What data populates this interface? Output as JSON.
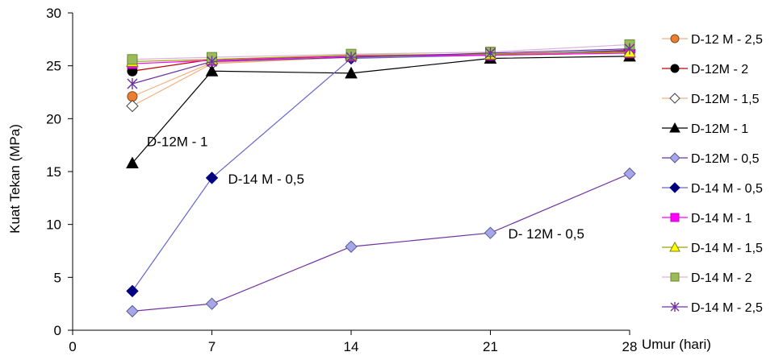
{
  "chart_data": {
    "type": "line",
    "ylabel": "Kuat Tekan (MPa)",
    "xlabel": "Umur (hari)",
    "xlim": [
      0,
      28
    ],
    "ylim": [
      0,
      30
    ],
    "x_ticks": [
      "0",
      "7",
      "14",
      "21",
      "28"
    ],
    "y_ticks": [
      "0",
      "5",
      "10",
      "15",
      "20",
      "25",
      "30"
    ],
    "x_tick_values": [
      0,
      7,
      14,
      21,
      28
    ],
    "y_tick_values": [
      0,
      5,
      10,
      15,
      20,
      25,
      30
    ],
    "grid": false,
    "legend_position": "right",
    "x": [
      3,
      7,
      14,
      21,
      28
    ],
    "series": [
      {
        "name": "D-12 M - 2,5",
        "values": [
          22.1,
          25.3,
          25.8,
          26.0,
          26.2
        ],
        "color": "#f4b183",
        "marker": "circle",
        "marker_fill": "#ed7d31",
        "marker_stroke": "#7f4a1a"
      },
      {
        "name": "D-12M - 2",
        "values": [
          24.5,
          25.6,
          25.9,
          26.1,
          26.4
        ],
        "color": "#c00000",
        "marker": "circle",
        "marker_fill": "#000000",
        "marker_stroke": "#000000"
      },
      {
        "name": "D-12M - 1,5",
        "values": [
          21.2,
          25.2,
          25.8,
          26.0,
          26.3
        ],
        "color": "#f4b183",
        "marker": "diamond",
        "marker_fill": "#ffffff",
        "marker_stroke": "#404040"
      },
      {
        "name": "D-12M - 1",
        "values": [
          15.8,
          24.5,
          24.3,
          25.7,
          25.9
        ],
        "color": "#000000",
        "marker": "triangle",
        "marker_fill": "#000000",
        "marker_stroke": "#000000"
      },
      {
        "name": "D-12M - 0,5",
        "values": [
          1.8,
          2.5,
          7.9,
          9.2,
          14.8
        ],
        "color": "#7030a0",
        "marker": "diamond",
        "marker_fill": "#a6a6e8",
        "marker_stroke": "#5a5a9a"
      },
      {
        "name": "D-14 M - 0,5",
        "values": [
          3.7,
          14.4,
          25.7,
          26.0,
          26.5
        ],
        "color": "#6666cc",
        "marker": "diamond",
        "marker_fill": "#000080",
        "marker_stroke": "#000080"
      },
      {
        "name": "D-14 M - 1",
        "values": [
          25.2,
          25.5,
          25.9,
          26.0,
          26.2
        ],
        "color": "#ff00ff",
        "marker": "square",
        "marker_fill": "#ff00ff",
        "marker_stroke": "#c000c0"
      },
      {
        "name": "D-14 M - 1,5",
        "values": [
          25.4,
          25.6,
          26.0,
          26.1,
          26.3
        ],
        "color": "#a0a000",
        "marker": "triangle",
        "marker_fill": "#ffff00",
        "marker_stroke": "#808000"
      },
      {
        "name": "D-14 M - 2",
        "values": [
          25.6,
          25.8,
          26.1,
          26.3,
          27.0
        ],
        "color": "#d9b3d9",
        "marker": "square",
        "marker_fill": "#9bbb59",
        "marker_stroke": "#6a8a30"
      },
      {
        "name": "D-14 M - 2,5",
        "values": [
          23.3,
          25.4,
          25.8,
          26.2,
          26.6
        ],
        "color": "#7030a0",
        "marker": "asterisk",
        "marker_fill": "none",
        "marker_stroke": "#7030a0"
      }
    ],
    "annotations": [
      {
        "text": "D-12M - 1",
        "x": 3,
        "y": 16.5
      },
      {
        "text": "D-14 M - 0,5",
        "x": 7,
        "y": 14.4
      },
      {
        "text": "D- 12M - 0,5",
        "x": 21,
        "y": 9.2
      }
    ]
  }
}
